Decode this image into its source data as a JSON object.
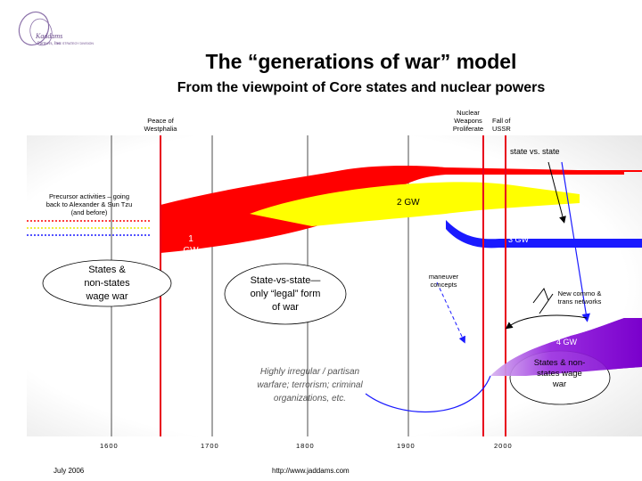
{
  "title": "The “generations of war” model",
  "subtitle": "From the viewpoint of Core states and nuclear powers",
  "logo": {
    "line1": "Kaddams",
    "line2": "Partners, Inc.",
    "tagline": "THE STRATEGY DIVISION"
  },
  "events": {
    "westphalia": [
      "Peace of",
      "Westphalia"
    ],
    "nuclear": [
      "Nuclear",
      "Weapons",
      "Proliferate"
    ],
    "ussr": [
      "Fall of",
      "USSR"
    ]
  },
  "labels": {
    "state_vs_state": "state vs. state",
    "precursor": [
      "Precursor activities – going",
      "back to Alexander & Sun Tzu",
      "(and before)"
    ],
    "gw1": [
      "1",
      "GW"
    ],
    "gw2": "2 GW",
    "gw3": "3 GW",
    "gw4": "4 GW",
    "states_nonstates": [
      "States &",
      "non-states",
      "wage war"
    ],
    "state_only": [
      "State-vs-state—",
      "only “legal” form",
      "of war"
    ],
    "maneuver": [
      "maneuver",
      "concepts"
    ],
    "new_commo": [
      "New commo &",
      "trans networks"
    ],
    "irregular": [
      "Highly irregular / partisan",
      "warfare; terrorism; criminal",
      "organizations, etc."
    ],
    "states_nonstates_right": [
      "States & non-",
      "states wage",
      "war"
    ]
  },
  "axis": {
    "ticks": [
      "1600",
      "1700",
      "1800",
      "1900",
      "2000"
    ]
  },
  "footer": {
    "date": "July 2006",
    "url": "http://www.jaddams.com"
  },
  "colors": {
    "gw1": "#ff0000",
    "gw2": "#ffff00",
    "gw3": "#1a1aff",
    "gw4": "#7a00cc",
    "event_line": "#e8001c",
    "plot_bg": "#ffffff"
  }
}
